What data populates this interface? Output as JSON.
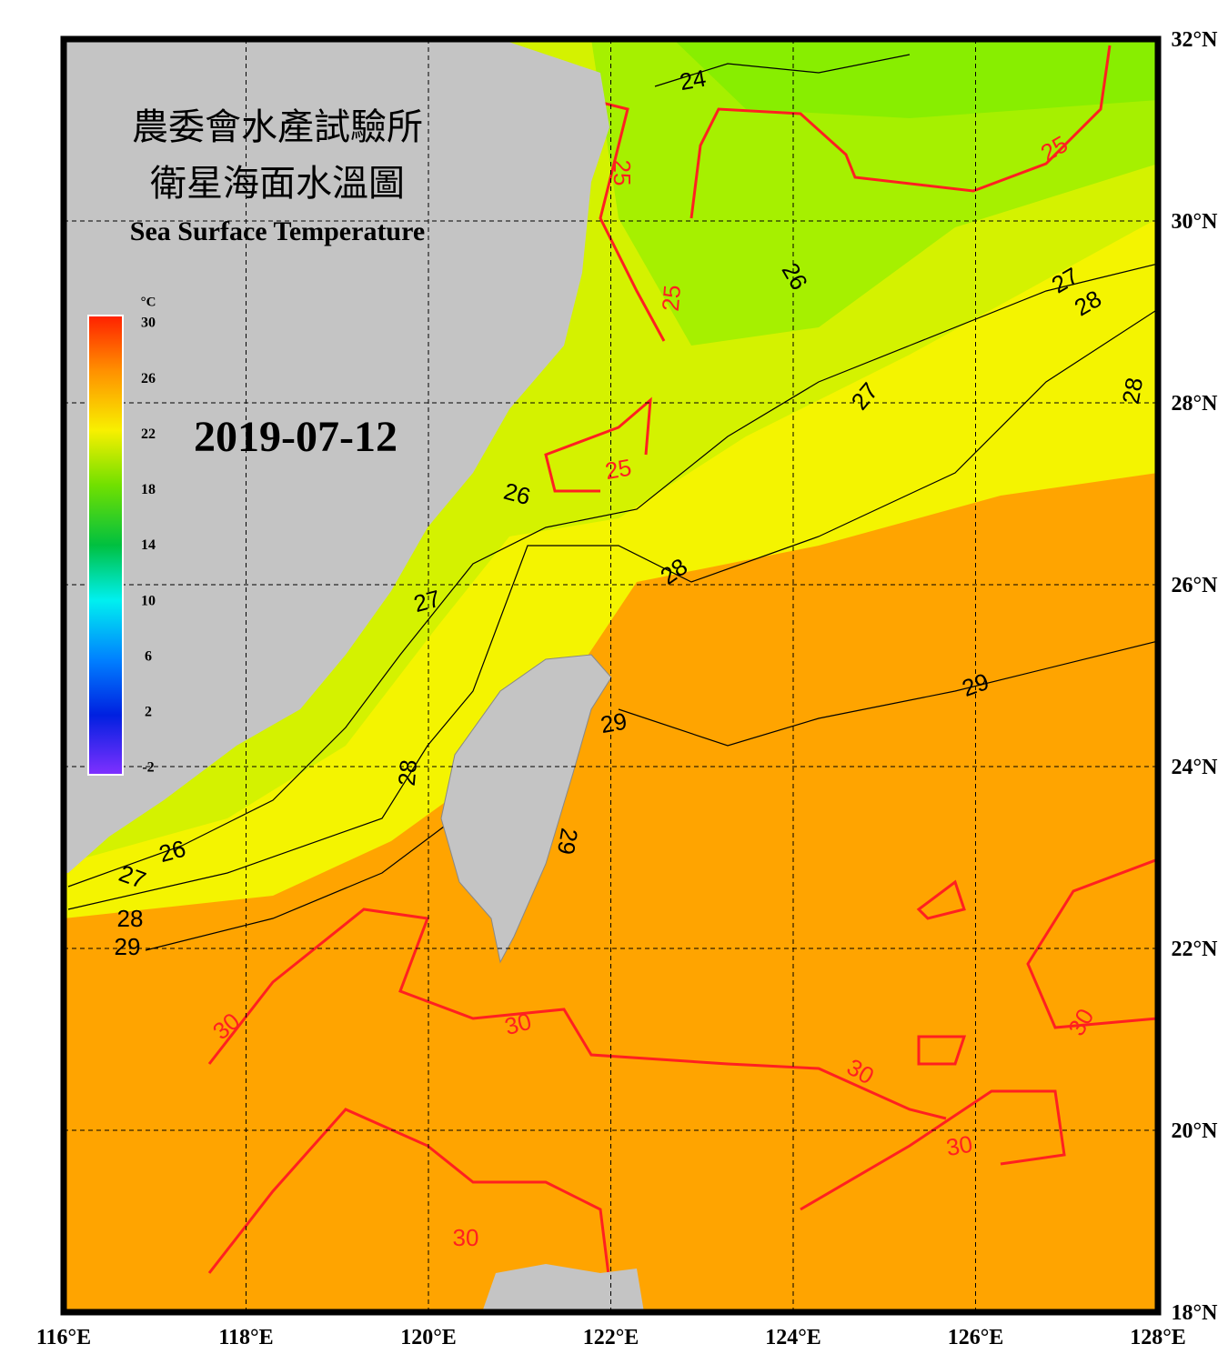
{
  "title": "農委會水產試驗所",
  "subtitle": "衛星海面水溫圖",
  "english_title": "Sea Surface Temperature",
  "date": "2019-07-12",
  "colorbar": {
    "unit": "°C",
    "ticks": [
      30,
      26,
      22,
      18,
      14,
      10,
      6,
      2,
      -2
    ],
    "lim": [
      -2,
      30
    ]
  },
  "map": {
    "xlim": [
      116,
      128
    ],
    "ylim": [
      18,
      32
    ],
    "xticks": [
      {
        "value": 116,
        "label": "116°E"
      },
      {
        "value": 118,
        "label": "118°E"
      },
      {
        "value": 120,
        "label": "120°E"
      },
      {
        "value": 122,
        "label": "122°E"
      },
      {
        "value": 124,
        "label": "124°E"
      },
      {
        "value": 126,
        "label": "126°E"
      },
      {
        "value": 128,
        "label": "128°E"
      }
    ],
    "yticks": [
      {
        "value": 18,
        "label": "18°N"
      },
      {
        "value": 20,
        "label": "20°N"
      },
      {
        "value": 22,
        "label": "22°N"
      },
      {
        "value": 24,
        "label": "24°N"
      },
      {
        "value": 26,
        "label": "26°N"
      },
      {
        "value": 28,
        "label": "28°N"
      },
      {
        "value": 30,
        "label": "30°N"
      },
      {
        "value": 32,
        "label": "32°N"
      }
    ],
    "grid": true
  },
  "contour_labels": [
    24,
    25,
    25,
    26,
    27,
    28,
    25,
    27,
    28,
    25,
    26,
    28,
    27,
    29,
    29,
    28,
    29,
    26,
    27,
    28,
    29,
    30,
    30,
    30,
    30,
    30,
    30
  ],
  "highlight_levels": [
    25,
    30
  ],
  "highlight_color": "#ff2020"
}
